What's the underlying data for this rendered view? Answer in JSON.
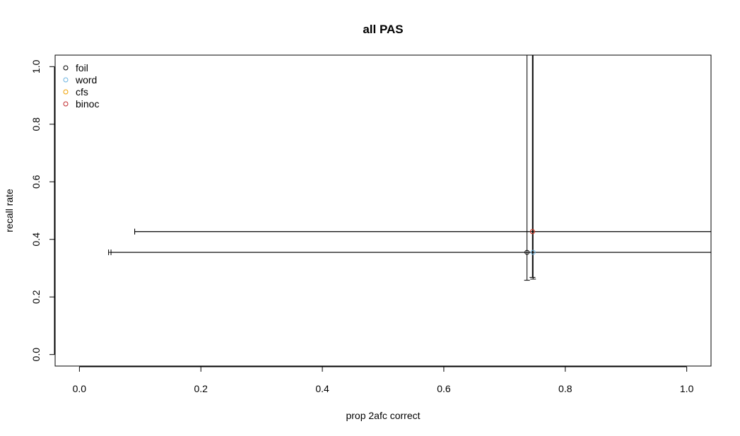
{
  "chart_data": {
    "type": "scatter",
    "title": "all PAS",
    "xlabel": "prop 2afc correct",
    "ylabel": "recall rate",
    "xlim": [
      -0.04,
      1.04
    ],
    "ylim": [
      -0.04,
      1.04
    ],
    "x_ticks": [
      0.0,
      0.2,
      0.4,
      0.6,
      0.8,
      1.0
    ],
    "x_tick_labels": [
      "0.0",
      "0.2",
      "0.4",
      "0.6",
      "0.8",
      "1.0"
    ],
    "y_ticks": [
      0.0,
      0.2,
      0.4,
      0.6,
      0.8,
      1.0
    ],
    "y_tick_labels": [
      "0.0",
      "0.2",
      "0.4",
      "0.6",
      "0.8",
      "1.0"
    ],
    "grid": false,
    "legend": {
      "position": "top-left"
    },
    "series": [
      {
        "name": "foil",
        "color": "#000000",
        "x": 0.737,
        "y": 0.355,
        "xerr": [
          0.048,
          1.15
        ],
        "yerr": [
          0.258,
          1.15
        ]
      },
      {
        "name": "word",
        "color": "#6cb3e0",
        "x": 0.747,
        "y": 0.355,
        "xerr": [
          0.052,
          1.15
        ],
        "yerr": [
          0.262,
          1.15
        ]
      },
      {
        "name": "cfs",
        "color": "#f0a000",
        "x": 0.746,
        "y": 0.427,
        "xerr": [
          0.091,
          1.15
        ],
        "yerr": [
          0.268,
          1.15
        ]
      },
      {
        "name": "binoc",
        "color": "#c0282c",
        "x": 0.746,
        "y": 0.427,
        "xerr": [
          0.091,
          1.15
        ],
        "yerr": [
          0.268,
          1.15
        ]
      }
    ]
  }
}
